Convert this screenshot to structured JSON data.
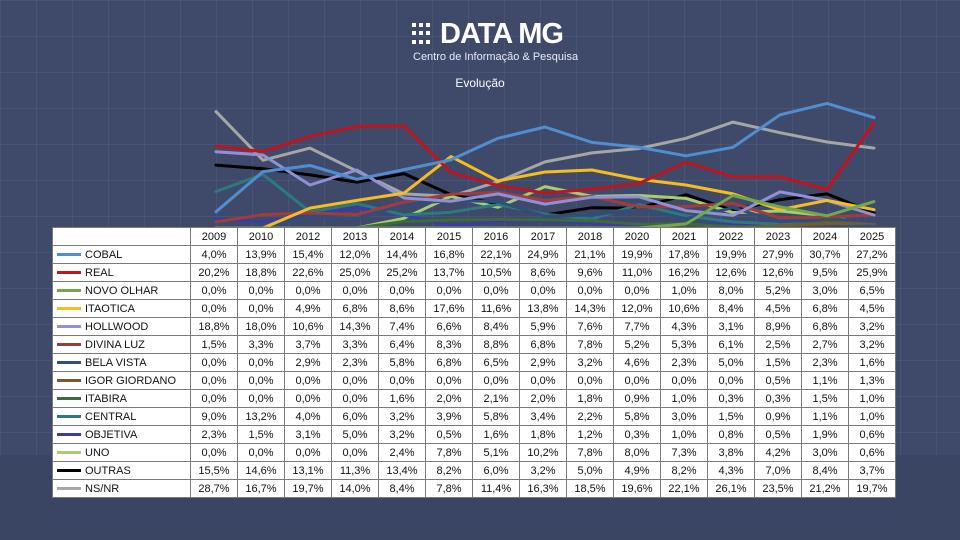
{
  "logo": {
    "title": "DATA MG",
    "subtitle": "Centro de Informação & Pesquisa"
  },
  "chart_data": {
    "type": "line",
    "title": "Evolução",
    "categories": [
      "2009",
      "2010",
      "2012",
      "2013",
      "2014",
      "2015",
      "2016",
      "2017",
      "2018",
      "2020",
      "2021",
      "2022",
      "2023",
      "2024",
      "2025"
    ],
    "ylim": [
      0,
      35
    ],
    "grid": false,
    "legend": "table-below",
    "series": [
      {
        "name": "COBAL",
        "color": "#4f8fd1",
        "values": [
          4.0,
          13.9,
          15.4,
          12.0,
          14.4,
          16.8,
          22.1,
          24.9,
          21.1,
          19.9,
          17.8,
          19.9,
          27.9,
          30.7,
          27.2
        ],
        "labels": [
          "4,0%",
          "13,9%",
          "15,4%",
          "12,0%",
          "14,4%",
          "16,8%",
          "22,1%",
          "24,9%",
          "21,1%",
          "19,9%",
          "17,8%",
          "19,9%",
          "27,9%",
          "30,7%",
          "27,2%"
        ]
      },
      {
        "name": "REAL",
        "color": "#c0141c",
        "values": [
          20.2,
          18.8,
          22.6,
          25.0,
          25.2,
          13.7,
          10.5,
          8.6,
          9.6,
          11.0,
          16.2,
          12.6,
          12.6,
          9.5,
          25.9
        ],
        "labels": [
          "20,2%",
          "18,8%",
          "22,6%",
          "25,0%",
          "25,2%",
          "13,7%",
          "10,5%",
          "8,6%",
          "9,6%",
          "11,0%",
          "16,2%",
          "12,6%",
          "12,6%",
          "9,5%",
          "25,9%"
        ]
      },
      {
        "name": "NOVO OLHAR",
        "color": "#70a84c",
        "values": [
          0.0,
          0.0,
          0.0,
          0.0,
          0.0,
          0.0,
          0.0,
          0.0,
          0.0,
          0.0,
          1.0,
          8.0,
          5.2,
          3.0,
          6.5
        ],
        "labels": [
          "0,0%",
          "0,0%",
          "0,0%",
          "0,0%",
          "0,0%",
          "0,0%",
          "0,0%",
          "0,0%",
          "0,0%",
          "0,0%",
          "1,0%",
          "8,0%",
          "5,2%",
          "3,0%",
          "6,5%"
        ]
      },
      {
        "name": "ITAOTICA",
        "color": "#f5bd1f",
        "values": [
          0.0,
          0.0,
          4.9,
          6.8,
          8.6,
          17.6,
          11.6,
          13.8,
          14.3,
          12.0,
          10.6,
          8.4,
          4.5,
          6.8,
          4.5
        ],
        "labels": [
          "0,0%",
          "0,0%",
          "4,9%",
          "6,8%",
          "8,6%",
          "17,6%",
          "11,6%",
          "13,8%",
          "14,3%",
          "12,0%",
          "10,6%",
          "8,4%",
          "4,5%",
          "6,8%",
          "4,5%"
        ]
      },
      {
        "name": "HOLLWOOD",
        "color": "#9090d6",
        "values": [
          18.8,
          18.0,
          10.6,
          14.3,
          7.4,
          6.6,
          8.4,
          5.9,
          7.6,
          7.7,
          4.3,
          3.1,
          8.9,
          6.8,
          3.2
        ],
        "labels": [
          "18,8%",
          "18,0%",
          "10,6%",
          "14,3%",
          "7,4%",
          "6,6%",
          "8,4%",
          "5,9%",
          "7,6%",
          "7,7%",
          "4,3%",
          "3,1%",
          "8,9%",
          "6,8%",
          "3,2%"
        ]
      },
      {
        "name": "DIVINA LUZ",
        "color": "#a03c3c",
        "values": [
          1.5,
          3.3,
          3.7,
          3.3,
          6.4,
          8.3,
          8.8,
          6.8,
          7.8,
          5.2,
          5.3,
          6.1,
          2.5,
          2.7,
          3.2
        ],
        "labels": [
          "1,5%",
          "3,3%",
          "3,7%",
          "3,3%",
          "6,4%",
          "8,3%",
          "8,8%",
          "6,8%",
          "7,8%",
          "5,2%",
          "5,3%",
          "6,1%",
          "2,5%",
          "2,7%",
          "3,2%"
        ]
      },
      {
        "name": "BELA VISTA",
        "color": "#2f4f7a",
        "values": [
          0.0,
          0.0,
          2.9,
          2.3,
          5.8,
          6.8,
          6.5,
          2.9,
          3.2,
          4.6,
          2.3,
          5.0,
          1.5,
          2.3,
          1.6
        ],
        "labels": [
          "0,0%",
          "0,0%",
          "2,9%",
          "2,3%",
          "5,8%",
          "6,8%",
          "6,5%",
          "2,9%",
          "3,2%",
          "4,6%",
          "2,3%",
          "5,0%",
          "1,5%",
          "2,3%",
          "1,6%"
        ]
      },
      {
        "name": "IGOR GIORDANO",
        "color": "#7a5a2a",
        "values": [
          0.0,
          0.0,
          0.0,
          0.0,
          0.0,
          0.0,
          0.0,
          0.0,
          0.0,
          0.0,
          0.0,
          0.0,
          0.5,
          1.1,
          1.3
        ],
        "labels": [
          "0,0%",
          "0,0%",
          "0,0%",
          "0,0%",
          "0,0%",
          "0,0%",
          "0,0%",
          "0,0%",
          "0,0%",
          "0,0%",
          "0,0%",
          "0,0%",
          "0,5%",
          "1,1%",
          "1,3%"
        ]
      },
      {
        "name": "ITABIRA",
        "color": "#3c6a3c",
        "values": [
          0.0,
          0.0,
          0.0,
          0.0,
          1.6,
          2.0,
          2.1,
          2.0,
          1.8,
          0.9,
          1.0,
          0.3,
          0.3,
          1.5,
          1.0
        ],
        "labels": [
          "0,0%",
          "0,0%",
          "0,0%",
          "0,0%",
          "1,6%",
          "2,0%",
          "2,1%",
          "2,0%",
          "1,8%",
          "0,9%",
          "1,0%",
          "0,3%",
          "0,3%",
          "1,5%",
          "1,0%"
        ]
      },
      {
        "name": "CENTRAL",
        "color": "#2a7a80",
        "values": [
          9.0,
          13.2,
          4.0,
          6.0,
          3.2,
          3.9,
          5.8,
          3.4,
          2.2,
          5.8,
          3.0,
          1.5,
          0.9,
          1.1,
          1.0
        ],
        "labels": [
          "9,0%",
          "13,2%",
          "4,0%",
          "6,0%",
          "3,2%",
          "3,9%",
          "5,8%",
          "3,4%",
          "2,2%",
          "5,8%",
          "3,0%",
          "1,5%",
          "0,9%",
          "1,1%",
          "1,0%"
        ]
      },
      {
        "name": "OBJETIVA",
        "color": "#3a3aa8",
        "values": [
          2.3,
          1.5,
          3.1,
          5.0,
          3.2,
          0.5,
          1.6,
          1.8,
          1.2,
          0.3,
          1.0,
          0.8,
          0.5,
          1.9,
          0.6
        ],
        "labels": [
          "2,3%",
          "1,5%",
          "3,1%",
          "5,0%",
          "3,2%",
          "0,5%",
          "1,6%",
          "1,8%",
          "1,2%",
          "0,3%",
          "1,0%",
          "0,8%",
          "0,5%",
          "1,9%",
          "0,6%"
        ]
      },
      {
        "name": "UNO",
        "color": "#a8cc70",
        "values": [
          0.0,
          0.0,
          0.0,
          0.0,
          2.4,
          7.8,
          5.1,
          10.2,
          7.8,
          8.0,
          7.3,
          3.8,
          4.2,
          3.0,
          0.6
        ],
        "labels": [
          "0,0%",
          "0,0%",
          "0,0%",
          "0,0%",
          "2,4%",
          "7,8%",
          "5,1%",
          "10,2%",
          "7,8%",
          "8,0%",
          "7,3%",
          "3,8%",
          "4,2%",
          "3,0%",
          "0,6%"
        ]
      },
      {
        "name": "OUTRAS",
        "color": "#000000",
        "values": [
          15.5,
          14.6,
          13.1,
          11.3,
          13.4,
          8.2,
          6.0,
          3.2,
          5.0,
          4.9,
          8.2,
          4.3,
          7.0,
          8.4,
          3.7
        ],
        "labels": [
          "15,5%",
          "14,6%",
          "13,1%",
          "11,3%",
          "13,4%",
          "8,2%",
          "6,0%",
          "3,2%",
          "5,0%",
          "4,9%",
          "8,2%",
          "4,3%",
          "7,0%",
          "8,4%",
          "3,7%"
        ]
      },
      {
        "name": "NS/NR",
        "color": "#a6a6a6",
        "values": [
          28.7,
          16.7,
          19.7,
          14.0,
          8.4,
          7.8,
          11.4,
          16.3,
          18.5,
          19.6,
          22.1,
          26.1,
          23.5,
          21.2,
          19.7
        ],
        "labels": [
          "28,7%",
          "16,7%",
          "19,7%",
          "14,0%",
          "8,4%",
          "7,8%",
          "11,4%",
          "16,3%",
          "18,5%",
          "19,6%",
          "22,1%",
          "26,1%",
          "23,5%",
          "21,2%",
          "19,7%"
        ]
      }
    ]
  }
}
